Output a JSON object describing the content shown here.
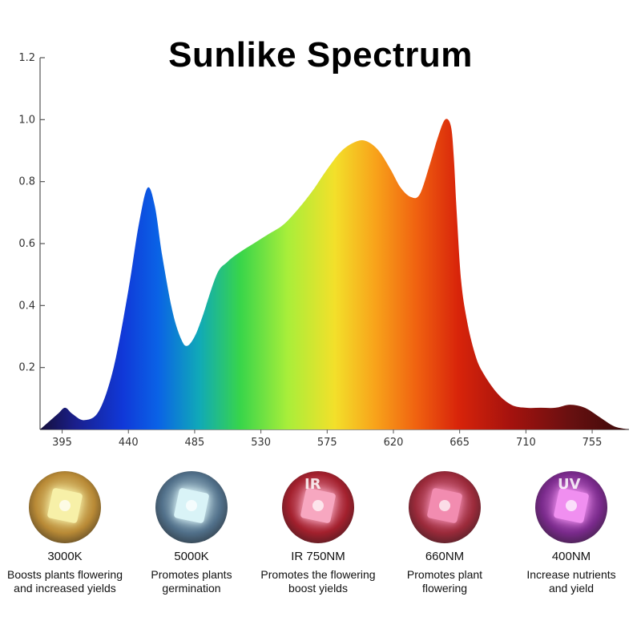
{
  "title": "Sunlike Spectrum",
  "chart_data": {
    "type": "area",
    "title": "Sunlike Spectrum",
    "xlabel": "",
    "ylabel": "",
    "x_ticks": [
      395,
      440,
      485,
      530,
      575,
      620,
      665,
      710,
      755
    ],
    "y_ticks": [
      0.2,
      0.4,
      0.6,
      0.8,
      1.0,
      1.2
    ],
    "y_tick_labels": [
      "0.2",
      "0.4",
      "0.6",
      "0.8",
      "1.0",
      "1.2"
    ],
    "xlim": [
      380,
      780
    ],
    "ylim": [
      0,
      1.2
    ],
    "grid": false,
    "series": [
      {
        "x": [
          380,
          392,
          397,
          402,
          410,
          420,
          430,
          440,
          447,
          453,
          458,
          463,
          470,
          476,
          480,
          485,
          490,
          500,
          507,
          515,
          525,
          535,
          545,
          555,
          565,
          575,
          585,
          595,
          602,
          610,
          618,
          625,
          632,
          638,
          645,
          650,
          655,
          659,
          661,
          663,
          666,
          670,
          675,
          680,
          690,
          700,
          710,
          720,
          730,
          740,
          750,
          760,
          770,
          780
        ],
        "y": [
          0.0,
          0.05,
          0.07,
          0.05,
          0.03,
          0.06,
          0.2,
          0.45,
          0.66,
          0.78,
          0.72,
          0.56,
          0.38,
          0.29,
          0.27,
          0.3,
          0.36,
          0.5,
          0.54,
          0.57,
          0.6,
          0.63,
          0.66,
          0.71,
          0.77,
          0.84,
          0.9,
          0.93,
          0.93,
          0.9,
          0.84,
          0.78,
          0.75,
          0.76,
          0.86,
          0.94,
          1.0,
          0.98,
          0.88,
          0.7,
          0.48,
          0.35,
          0.25,
          0.19,
          0.12,
          0.08,
          0.07,
          0.07,
          0.07,
          0.08,
          0.07,
          0.04,
          0.01,
          0.0
        ]
      }
    ]
  },
  "leds": [
    {
      "name": "3000K",
      "desc": [
        "Boosts plants flowering",
        "and increased yields"
      ],
      "chip_color": "#f7f0a8",
      "ring_color": "#b98a36",
      "mark": ""
    },
    {
      "name": "5000K",
      "desc": [
        "Promotes plants",
        "germination"
      ],
      "chip_color": "#d9f3f7",
      "ring_color": "#51708a",
      "mark": ""
    },
    {
      "name": "IR 750NM",
      "desc": [
        "Promotes the flowering",
        "boost yields"
      ],
      "chip_color": "#f7a7c0",
      "ring_color": "#a3202d",
      "mark": "IR"
    },
    {
      "name": "660NM",
      "desc": [
        "Promotes plant",
        "flowering"
      ],
      "chip_color": "#f28cb0",
      "ring_color": "#9b2a3a",
      "mark": ""
    },
    {
      "name": "400NM",
      "desc": [
        "Increase nutrients",
        "and yield"
      ],
      "chip_color": "#f08ff0",
      "ring_color": "#7a2a8c",
      "mark": "UV"
    }
  ]
}
